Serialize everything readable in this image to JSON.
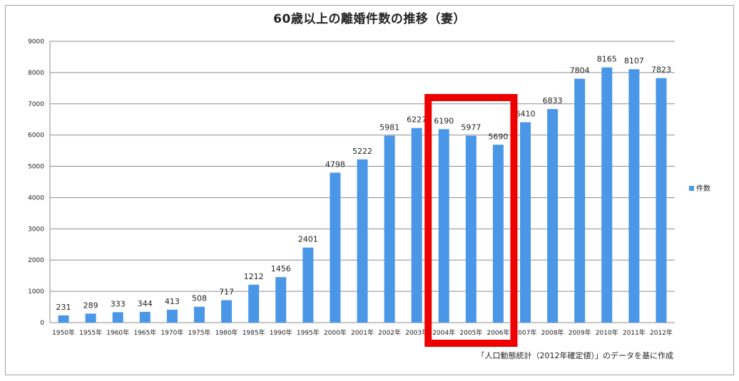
{
  "chart_data": {
    "type": "bar",
    "title": "60歳以上の離婚件数の推移（妻）",
    "categories": [
      "1950年",
      "1955年",
      "1960年",
      "1965年",
      "1970年",
      "1975年",
      "1980年",
      "1985年",
      "1990年",
      "1995年",
      "2000年",
      "2001年",
      "2002年",
      "2003年",
      "2004年",
      "2005年",
      "2006年",
      "2007年",
      "2008年",
      "2009年",
      "2010年",
      "2011年",
      "2012年"
    ],
    "series": [
      {
        "name": "件数",
        "values": [
          231,
          289,
          333,
          344,
          413,
          508,
          717,
          1212,
          1456,
          2401,
          4798,
          5222,
          5981,
          6227,
          6190,
          5977,
          5690,
          6410,
          6833,
          7804,
          8165,
          8107,
          7823
        ]
      }
    ],
    "ylim": [
      0,
      9000
    ],
    "yticks": [
      0,
      1000,
      2000,
      3000,
      4000,
      5000,
      6000,
      7000,
      8000,
      9000
    ],
    "xlabel": "",
    "ylabel": "",
    "grid": true,
    "legend": "right",
    "bar_color": "#4a97e8",
    "highlight": {
      "categories": [
        "2004年",
        "2005年",
        "2006年"
      ],
      "color": "#ee0000"
    },
    "source_note": "「人口動態統計（2012年確定値）」のデータを基に作成"
  }
}
